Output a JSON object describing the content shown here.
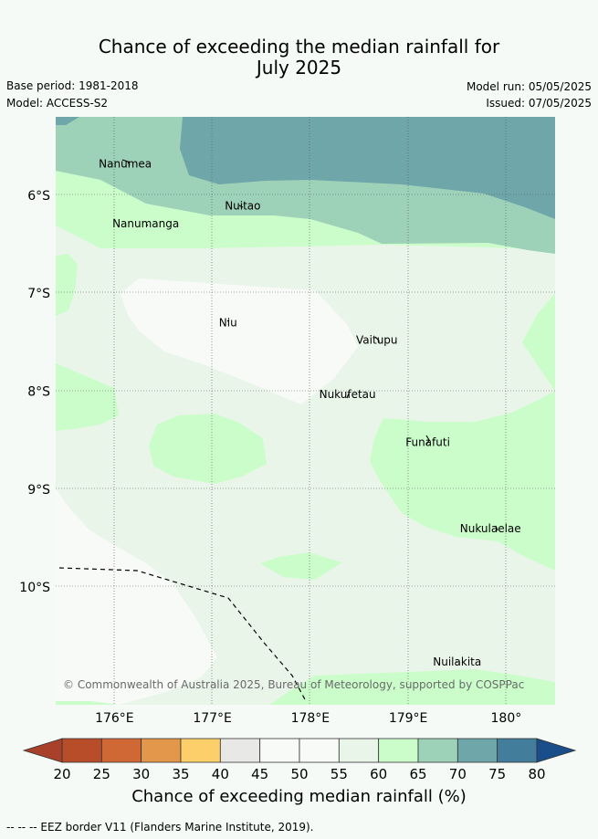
{
  "title": {
    "line1": "Chance of exceeding the median rainfall for",
    "line2": "July 2025"
  },
  "meta": {
    "base_period": "Base period: 1981-2018",
    "model": "Model: ACCESS-S2",
    "model_run": "Model run: 05/05/2025",
    "issued": "Issued: 07/05/2025"
  },
  "map": {
    "lon_range": [
      175.4,
      180.5
    ],
    "lat_range": [
      -11.2,
      -5.2
    ],
    "lon_ticks": [
      {
        "value": 176,
        "label": "176°E"
      },
      {
        "value": 177,
        "label": "177°E"
      },
      {
        "value": 178,
        "label": "178°E"
      },
      {
        "value": 179,
        "label": "179°E"
      },
      {
        "value": 180,
        "label": "180°"
      }
    ],
    "lat_ticks": [
      {
        "value": -6,
        "label": "6°S"
      },
      {
        "value": -7,
        "label": "7°S"
      },
      {
        "value": -8,
        "label": "8°S"
      },
      {
        "value": -9,
        "label": "9°S"
      },
      {
        "value": -10,
        "label": "10°S"
      }
    ],
    "places": [
      {
        "name": "Nanumea",
        "lon": 176.11,
        "lat": -5.68
      },
      {
        "name": "Nuitao",
        "lon": 177.31,
        "lat": -6.11
      },
      {
        "name": "Nanumanga",
        "lon": 176.32,
        "lat": -6.29
      },
      {
        "name": "Niu",
        "lon": 177.16,
        "lat": -7.3
      },
      {
        "name": "Vaitupu",
        "lon": 178.68,
        "lat": -7.48
      },
      {
        "name": "Nukufetau",
        "lon": 178.38,
        "lat": -8.03
      },
      {
        "name": "Funafuti",
        "lon": 179.2,
        "lat": -8.52
      },
      {
        "name": "Nukulaelae",
        "lon": 179.84,
        "lat": -9.4
      },
      {
        "name": "Nuilakita",
        "lon": 179.5,
        "lat": -10.76
      }
    ],
    "copyright": "© Commonwealth of Australia 2025, Bureau of Meteorology, supported by COSPPac"
  },
  "colorbar": {
    "title": "Chance of exceeding median rainfall (%)",
    "ticks": [
      "20",
      "25",
      "30",
      "35",
      "40",
      "45",
      "50",
      "55",
      "60",
      "65",
      "70",
      "75",
      "80"
    ],
    "colors": {
      "under": "#a8402a",
      "bins": [
        "#b84d2a",
        "#cf6835",
        "#e3974b",
        "#fdcf6a",
        "#e8e8e6",
        "#f7faf7",
        "#f7faf7",
        "#eaf5ea",
        "#cbfdcb",
        "#9dd1b8",
        "#6fa6a9",
        "#427d9b"
      ],
      "over": "#1a4e8a"
    }
  },
  "map_colors": {
    "c55": "#f7faf7",
    "c60": "#eaf5ea",
    "c65": "#cbfdcb",
    "c70": "#9dd1b8",
    "c75": "#6fa6a9"
  },
  "footnote": "--  --  -- EEZ border V11 (Flanders Marine Institute, 2019)."
}
